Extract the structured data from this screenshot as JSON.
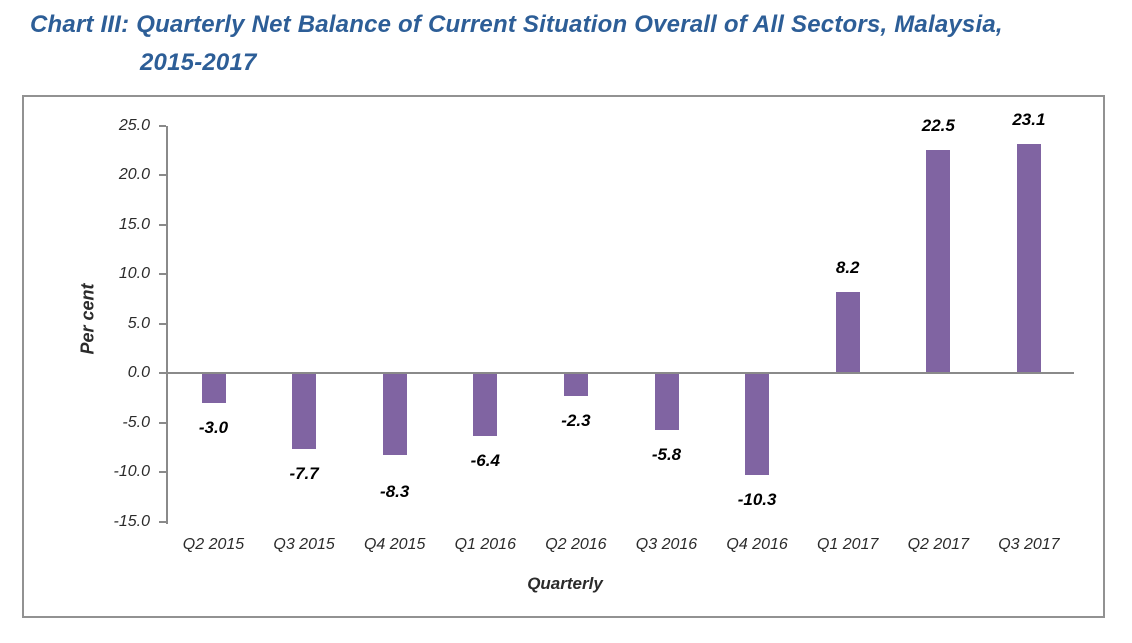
{
  "title": {
    "line1": "Chart III: Quarterly Net Balance of Current Situation Overall of All Sectors, Malaysia,",
    "line2": "2015-2017"
  },
  "chart_data": {
    "type": "bar",
    "title": "Chart III: Quarterly Net Balance of Current Situation Overall of All Sectors, Malaysia, 2015-2017",
    "categories": [
      "Q2 2015",
      "Q3 2015",
      "Q4 2015",
      "Q1 2016",
      "Q2 2016",
      "Q3 2016",
      "Q4 2016",
      "Q1 2017",
      "Q2 2017",
      "Q3 2017"
    ],
    "values": [
      -3.0,
      -7.7,
      -8.3,
      -6.4,
      -2.3,
      -5.8,
      -10.3,
      8.2,
      22.5,
      23.1
    ],
    "xlabel": "Quarterly",
    "ylabel": "Per cent",
    "ylim": [
      -15.0,
      25.0
    ],
    "ytick_step": 5.0,
    "grid": false,
    "legend": "none",
    "bar_color": "#8064A2",
    "axis_color": "#8a8a8a",
    "title_color": "#2D5E97",
    "tick_label_color": "#2b2b2b",
    "data_label_color": "#000000"
  }
}
